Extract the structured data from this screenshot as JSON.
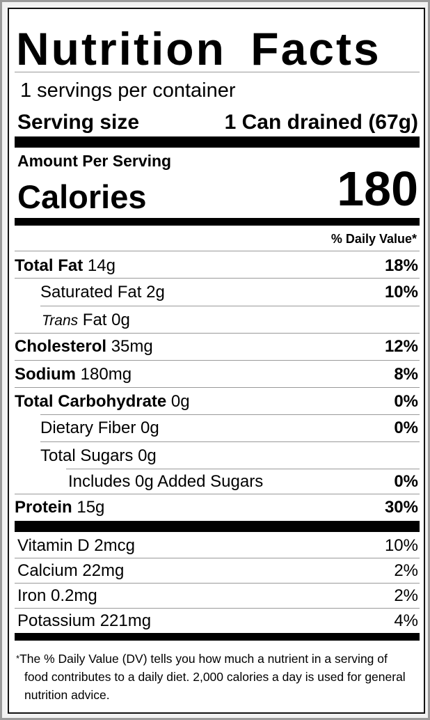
{
  "title": "Nutrition Facts",
  "servings_per_container": "1 servings per container",
  "serving_size": {
    "label": "Serving size",
    "value": "1 Can drained (67g)"
  },
  "amount_per_serving": "Amount Per Serving",
  "calories": {
    "label": "Calories",
    "value": "180"
  },
  "daily_value_header": "% Daily Value*",
  "nutrients": [
    {
      "name": "Total Fat",
      "amount": "14g",
      "dv": "18%"
    },
    {
      "name": "Saturated Fat",
      "amount": "2g",
      "dv": "10%"
    },
    {
      "name_italic": "Trans",
      "name": "Fat",
      "amount": "0g",
      "dv": ""
    },
    {
      "name": "Cholesterol",
      "amount": "35mg",
      "dv": "12%"
    },
    {
      "name": "Sodium",
      "amount": "180mg",
      "dv": "8%"
    },
    {
      "name": "Total Carbohydrate",
      "amount": "0g",
      "dv": "0%"
    },
    {
      "name": "Dietary Fiber",
      "amount": "0g",
      "dv": "0%"
    },
    {
      "name": "Total Sugars",
      "amount": "0g",
      "dv": ""
    },
    {
      "name": "Includes 0g Added Sugars",
      "amount": "",
      "dv": "0%"
    },
    {
      "name": "Protein",
      "amount": "15g",
      "dv": "30%"
    }
  ],
  "vitamins": [
    {
      "text": "Vitamin D 2mcg",
      "dv": "10%"
    },
    {
      "text": "Calcium 22mg",
      "dv": "2%"
    },
    {
      "text": "Iron 0.2mg",
      "dv": "2%"
    },
    {
      "text": "Potassium 221mg",
      "dv": "4%"
    }
  ],
  "footnote": {
    "asterisk": "*",
    "text": "The % Daily Value (DV) tells you how much a nutrient in a serving of food contributes to a daily diet. 2,000 calories a day is used for general nutrition advice."
  }
}
